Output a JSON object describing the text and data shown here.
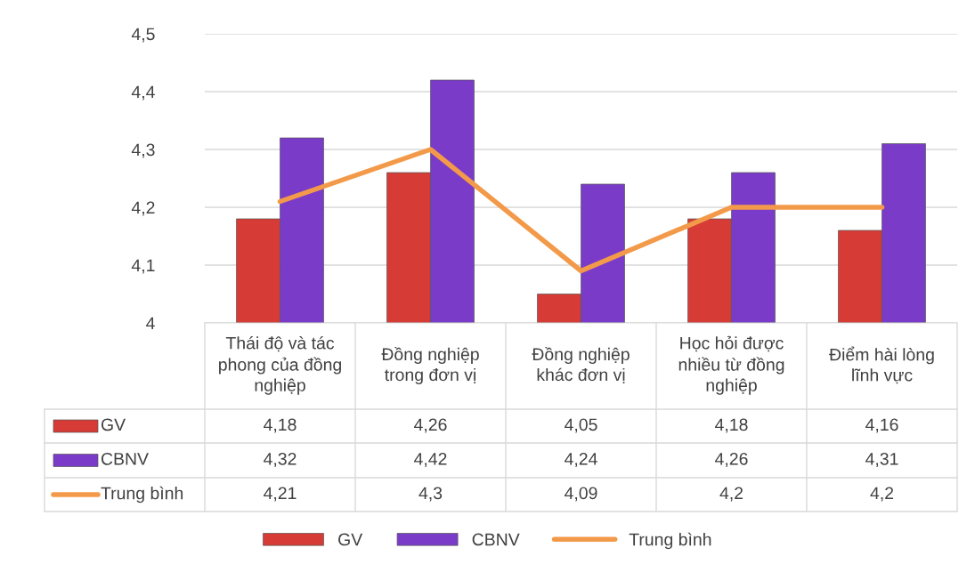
{
  "chart_data": {
    "type": "bar",
    "categories": [
      "Thái độ và tác phong của đồng nghiệp",
      "Đồng nghiệp trong đơn vị",
      "Đồng nghiệp khác đơn vị",
      "Học hỏi được nhiều từ đồng nghiệp",
      "Điểm hài lòng lĩnh vực"
    ],
    "series": [
      {
        "name": "GV",
        "color": "#d63b35",
        "values": [
          4.18,
          4.26,
          4.05,
          4.18,
          4.16
        ],
        "value_labels": [
          "4,18",
          "4,26",
          "4,05",
          "4,18",
          "4,16"
        ]
      },
      {
        "name": "CBNV",
        "color": "#7a3cc8",
        "values": [
          4.32,
          4.42,
          4.24,
          4.26,
          4.31
        ],
        "value_labels": [
          "4,32",
          "4,42",
          "4,24",
          "4,26",
          "4,31"
        ]
      },
      {
        "name": "Trung bình",
        "type": "line",
        "color": "#f39a4a",
        "values": [
          4.21,
          4.3,
          4.09,
          4.2,
          4.2
        ],
        "value_labels": [
          "4,21",
          "4,3",
          "4,09",
          "4,2",
          "4,2"
        ]
      }
    ],
    "ylim": [
      4,
      4.5
    ],
    "yticks": [
      4,
      {
        "value": 4.1,
        "label": "4,1"
      },
      {
        "value": 4.2,
        "label": "4,2"
      },
      {
        "value": 4.3,
        "label": "4,3"
      },
      {
        "value": 4.4,
        "label": "4,4"
      },
      {
        "value": 4.5,
        "label": "4,5"
      }
    ],
    "grid": "y",
    "legend": "bottom",
    "marker": "none",
    "line_style": "solid"
  }
}
